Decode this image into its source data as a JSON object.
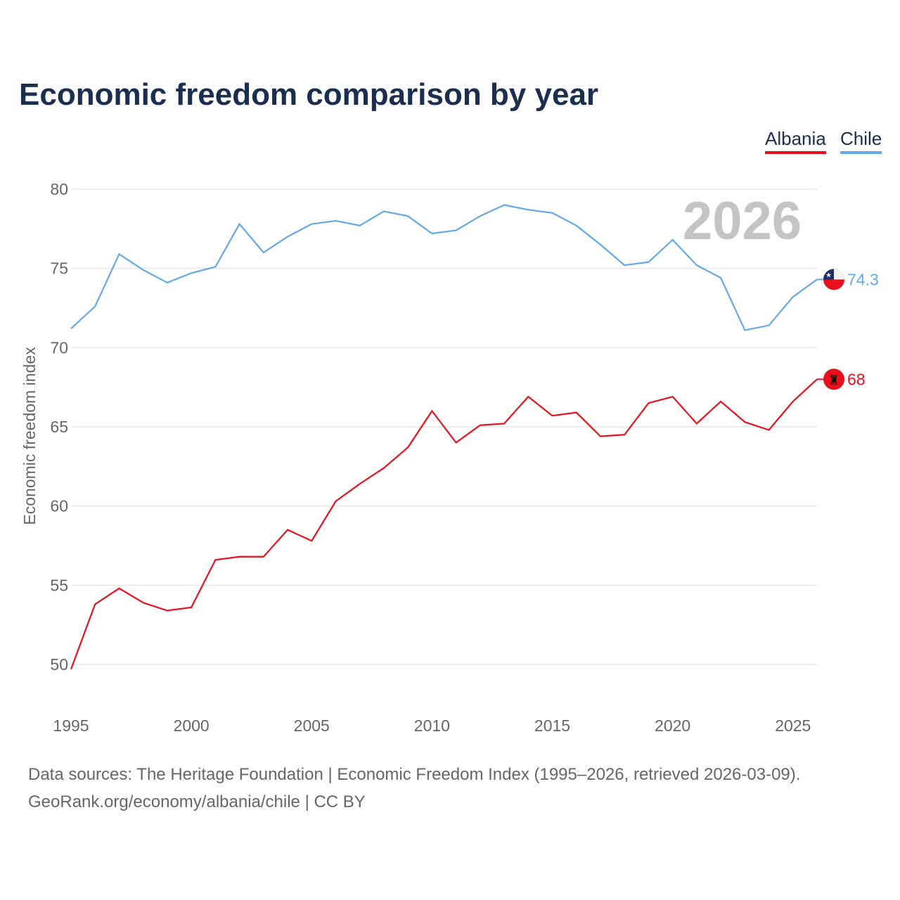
{
  "chart_data": {
    "type": "line",
    "title": "Economic freedom comparison by year",
    "xlabel": "",
    "ylabel": "Economic freedom index",
    "xlim": [
      1995,
      2026
    ],
    "ylim": [
      50,
      80
    ],
    "yticks": [
      50,
      55,
      60,
      65,
      70,
      75,
      80
    ],
    "xticks": [
      1995,
      2000,
      2005,
      2010,
      2015,
      2020,
      2025
    ],
    "grid": true,
    "legend_position": "top-right",
    "watermark_year": "2026",
    "x": [
      1995,
      1996,
      1997,
      1998,
      1999,
      2000,
      2001,
      2002,
      2003,
      2004,
      2005,
      2006,
      2007,
      2008,
      2009,
      2010,
      2011,
      2012,
      2013,
      2014,
      2015,
      2016,
      2017,
      2018,
      2019,
      2020,
      2021,
      2022,
      2023,
      2024,
      2025,
      2026
    ],
    "series": [
      {
        "name": "Albania",
        "color": "#e8101c",
        "end_label": "68",
        "values": [
          49.7,
          53.8,
          54.8,
          53.9,
          53.4,
          53.6,
          56.6,
          56.8,
          56.8,
          58.5,
          57.8,
          60.3,
          61.4,
          62.4,
          63.7,
          66.0,
          64.0,
          65.1,
          65.2,
          66.9,
          65.7,
          65.9,
          64.4,
          64.5,
          66.5,
          66.9,
          65.2,
          66.6,
          65.3,
          64.8,
          66.6,
          68.0
        ]
      },
      {
        "name": "Chile",
        "color": "#62a8ea",
        "end_label": "74.3",
        "values": [
          71.2,
          72.6,
          75.9,
          74.9,
          74.1,
          74.7,
          75.1,
          77.8,
          76.0,
          77.0,
          77.8,
          78.0,
          77.7,
          78.6,
          78.3,
          77.2,
          77.4,
          78.3,
          79.0,
          78.7,
          78.5,
          77.7,
          76.5,
          75.2,
          75.4,
          76.8,
          75.2,
          74.4,
          71.1,
          71.4,
          73.2,
          74.3
        ]
      }
    ]
  },
  "footer": {
    "line1": "Data sources: The Heritage Foundation | Economic Freedom Index (1995–2026, retrieved 2026-03-09).",
    "line2": "GeoRank.org/economy/albania/chile | CC BY"
  }
}
